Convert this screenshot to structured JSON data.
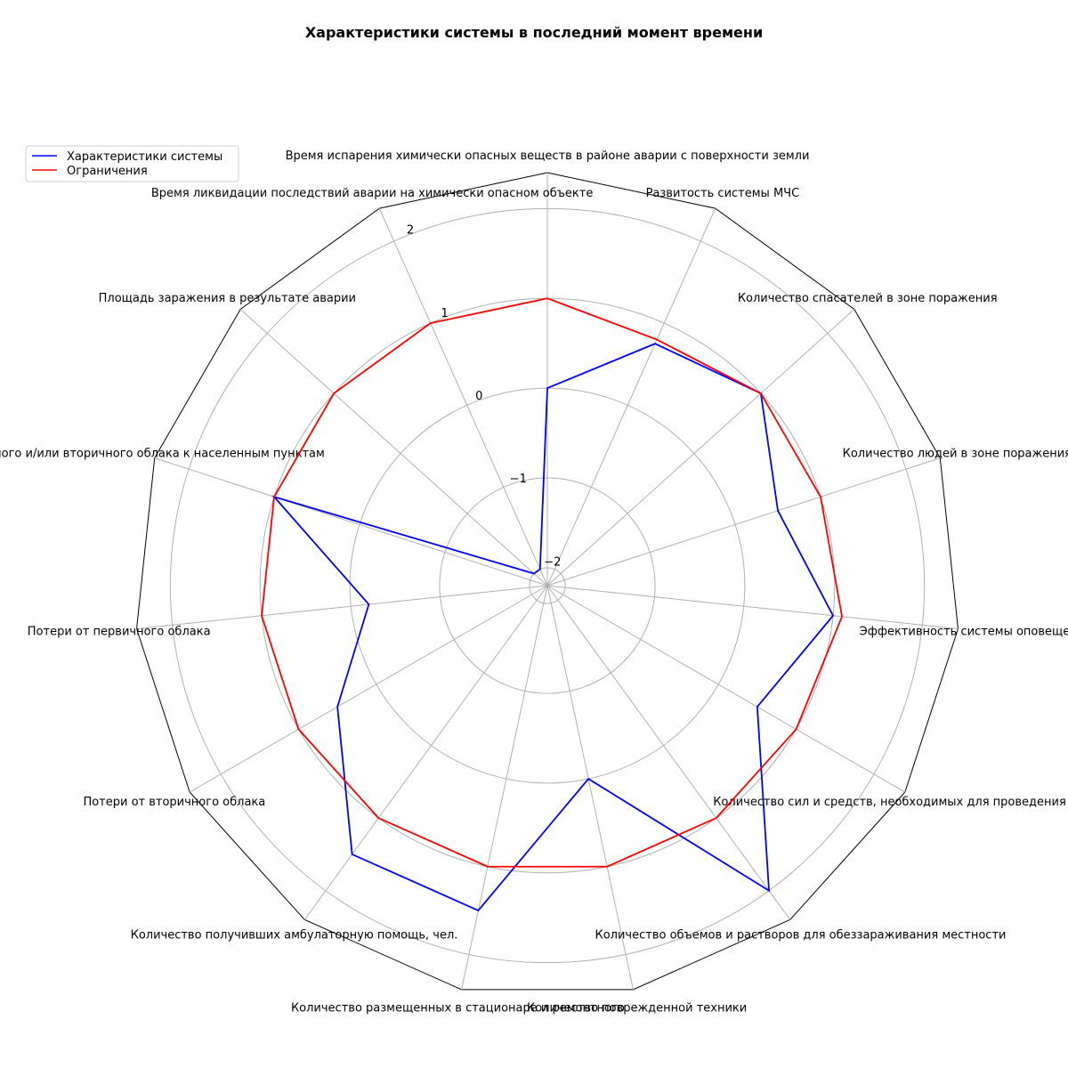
{
  "chart_data": {
    "type": "radar",
    "title": "Характеристики системы в последний момент времени",
    "categories": [
      "Время испарения химически опасных веществ в районе аварии с поверхности земли",
      "Развитость системы МЧС",
      "Количество спасателей в зоне поражения",
      "Количество людей в зоне поражения",
      "Эффективность системы оповещения",
      "Количество сил и средств, необходимых для проведения аварийно",
      "Количество объемов и растворов для обеззараживания местности",
      "Количество поврежденной техники",
      "Количество размещенных в стационаре и ремонтного",
      "Количество получивших амбулаторную помощь, чел.",
      "Потери от вторичного облака",
      "Потери от первичного облака",
      "первичного и/или вторичного облака к населенным пунктам",
      "Площадь заражения в результате аварии",
      "Время ликвидации последствий аварии на химически опасном объекте"
    ],
    "series": [
      {
        "name": "Характеристики системы",
        "color": "#0000ff",
        "values": [
          0.0,
          0.75,
          1.0,
          0.5,
          1.0,
          0.5,
          2.0,
          0.0,
          1.5,
          1.5,
          0.5,
          -0.2,
          1.0,
          -2.0,
          -2.0
        ]
      },
      {
        "name": "Ограничения",
        "color": "#ff0000",
        "values": [
          1.0,
          0.8,
          1.0,
          1.0,
          1.1,
          1.0,
          1.0,
          1.0,
          1.0,
          1.0,
          1.0,
          1.0,
          1.0,
          1.0,
          1.0
        ]
      }
    ],
    "rlim": [
      -2.2,
      2.4
    ],
    "rticks": [
      -2,
      -1,
      0,
      1,
      2
    ],
    "rtick_labels": [
      "−2",
      "−1",
      "0",
      "1",
      "2"
    ],
    "grid": true,
    "legend_position": "upper-left"
  }
}
